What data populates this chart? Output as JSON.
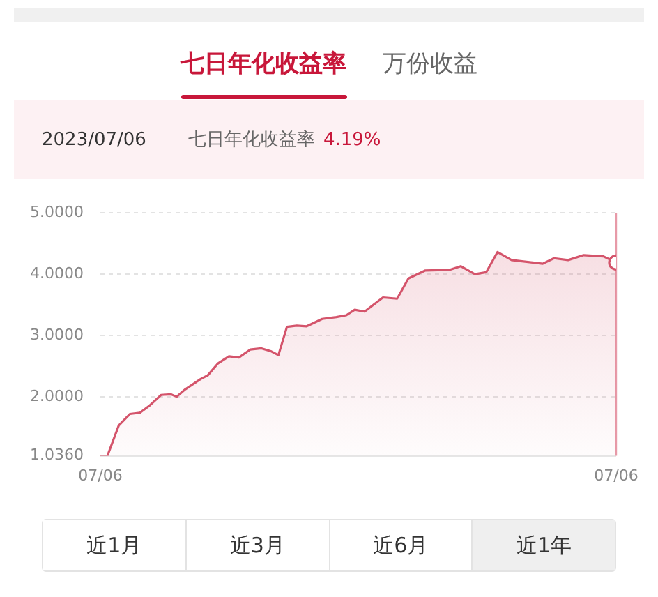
{
  "chart_data": {
    "type": "area",
    "title": "七日年化收益率",
    "annotations": [
      "万份收益",
      "2023/07/06",
      "七日年化收益率",
      "4.19%",
      "近1月",
      "近3月",
      "近6月",
      "近1年"
    ],
    "x": [
      "2022-07-06",
      "2022-07-11",
      "2022-07-19",
      "2022-07-27",
      "2022-08-03",
      "2022-08-10",
      "2022-08-18",
      "2022-08-25",
      "2022-08-29",
      "2022-09-04",
      "2022-09-15",
      "2022-09-20",
      "2022-09-27",
      "2022-10-05",
      "2022-10-12",
      "2022-10-20",
      "2022-10-28",
      "2022-11-04",
      "2022-11-09",
      "2022-11-15",
      "2022-11-22",
      "2022-11-29",
      "2022-12-10",
      "2022-12-20",
      "2022-12-27",
      "2023-01-02",
      "2023-01-09",
      "2023-01-22",
      "2023-02-01",
      "2023-02-09",
      "2023-02-21",
      "2023-03-10",
      "2023-03-18",
      "2023-03-28",
      "2023-04-05",
      "2023-04-13",
      "2023-04-23",
      "2023-05-15",
      "2023-05-23",
      "2023-06-02",
      "2023-06-13",
      "2023-06-27",
      "2023-07-06"
    ],
    "series": [
      {
        "color": "#d4546b",
        "values": [
          1.036,
          1.036,
          1.53,
          1.72,
          1.74,
          1.86,
          2.03,
          2.04,
          2.0,
          2.12,
          2.29,
          2.35,
          2.54,
          2.66,
          2.64,
          2.77,
          2.79,
          2.74,
          2.68,
          3.14,
          3.16,
          3.15,
          3.27,
          3.3,
          3.33,
          3.42,
          3.39,
          3.62,
          3.6,
          3.93,
          4.06,
          4.07,
          4.13,
          4.0,
          4.03,
          4.36,
          4.23,
          4.17,
          4.26,
          4.23,
          4.31,
          4.29,
          4.19
        ]
      }
    ],
    "xlim": [
      "2022-07-06",
      "2023-07-06"
    ],
    "xticks": [
      {
        "value": "2022-07-06",
        "label": "07/06"
      },
      {
        "value": "2023-07-06",
        "label": "07/06"
      }
    ],
    "ylim": [
      1.036,
      5.0
    ],
    "yticks": [
      {
        "value": 1.036,
        "label": "1.0360"
      },
      {
        "value": 2,
        "label": "2.0000"
      },
      {
        "value": 3,
        "label": "3.0000"
      },
      {
        "value": 4,
        "label": "4.0000"
      },
      {
        "value": 5,
        "label": "5.0000"
      }
    ],
    "ref_lines": [
      {
        "axis": "x",
        "value": "2023-07-06",
        "color": "#e79aa8"
      }
    ],
    "grid": "y",
    "legend": false,
    "marker": "none",
    "line_style": "solid"
  }
}
